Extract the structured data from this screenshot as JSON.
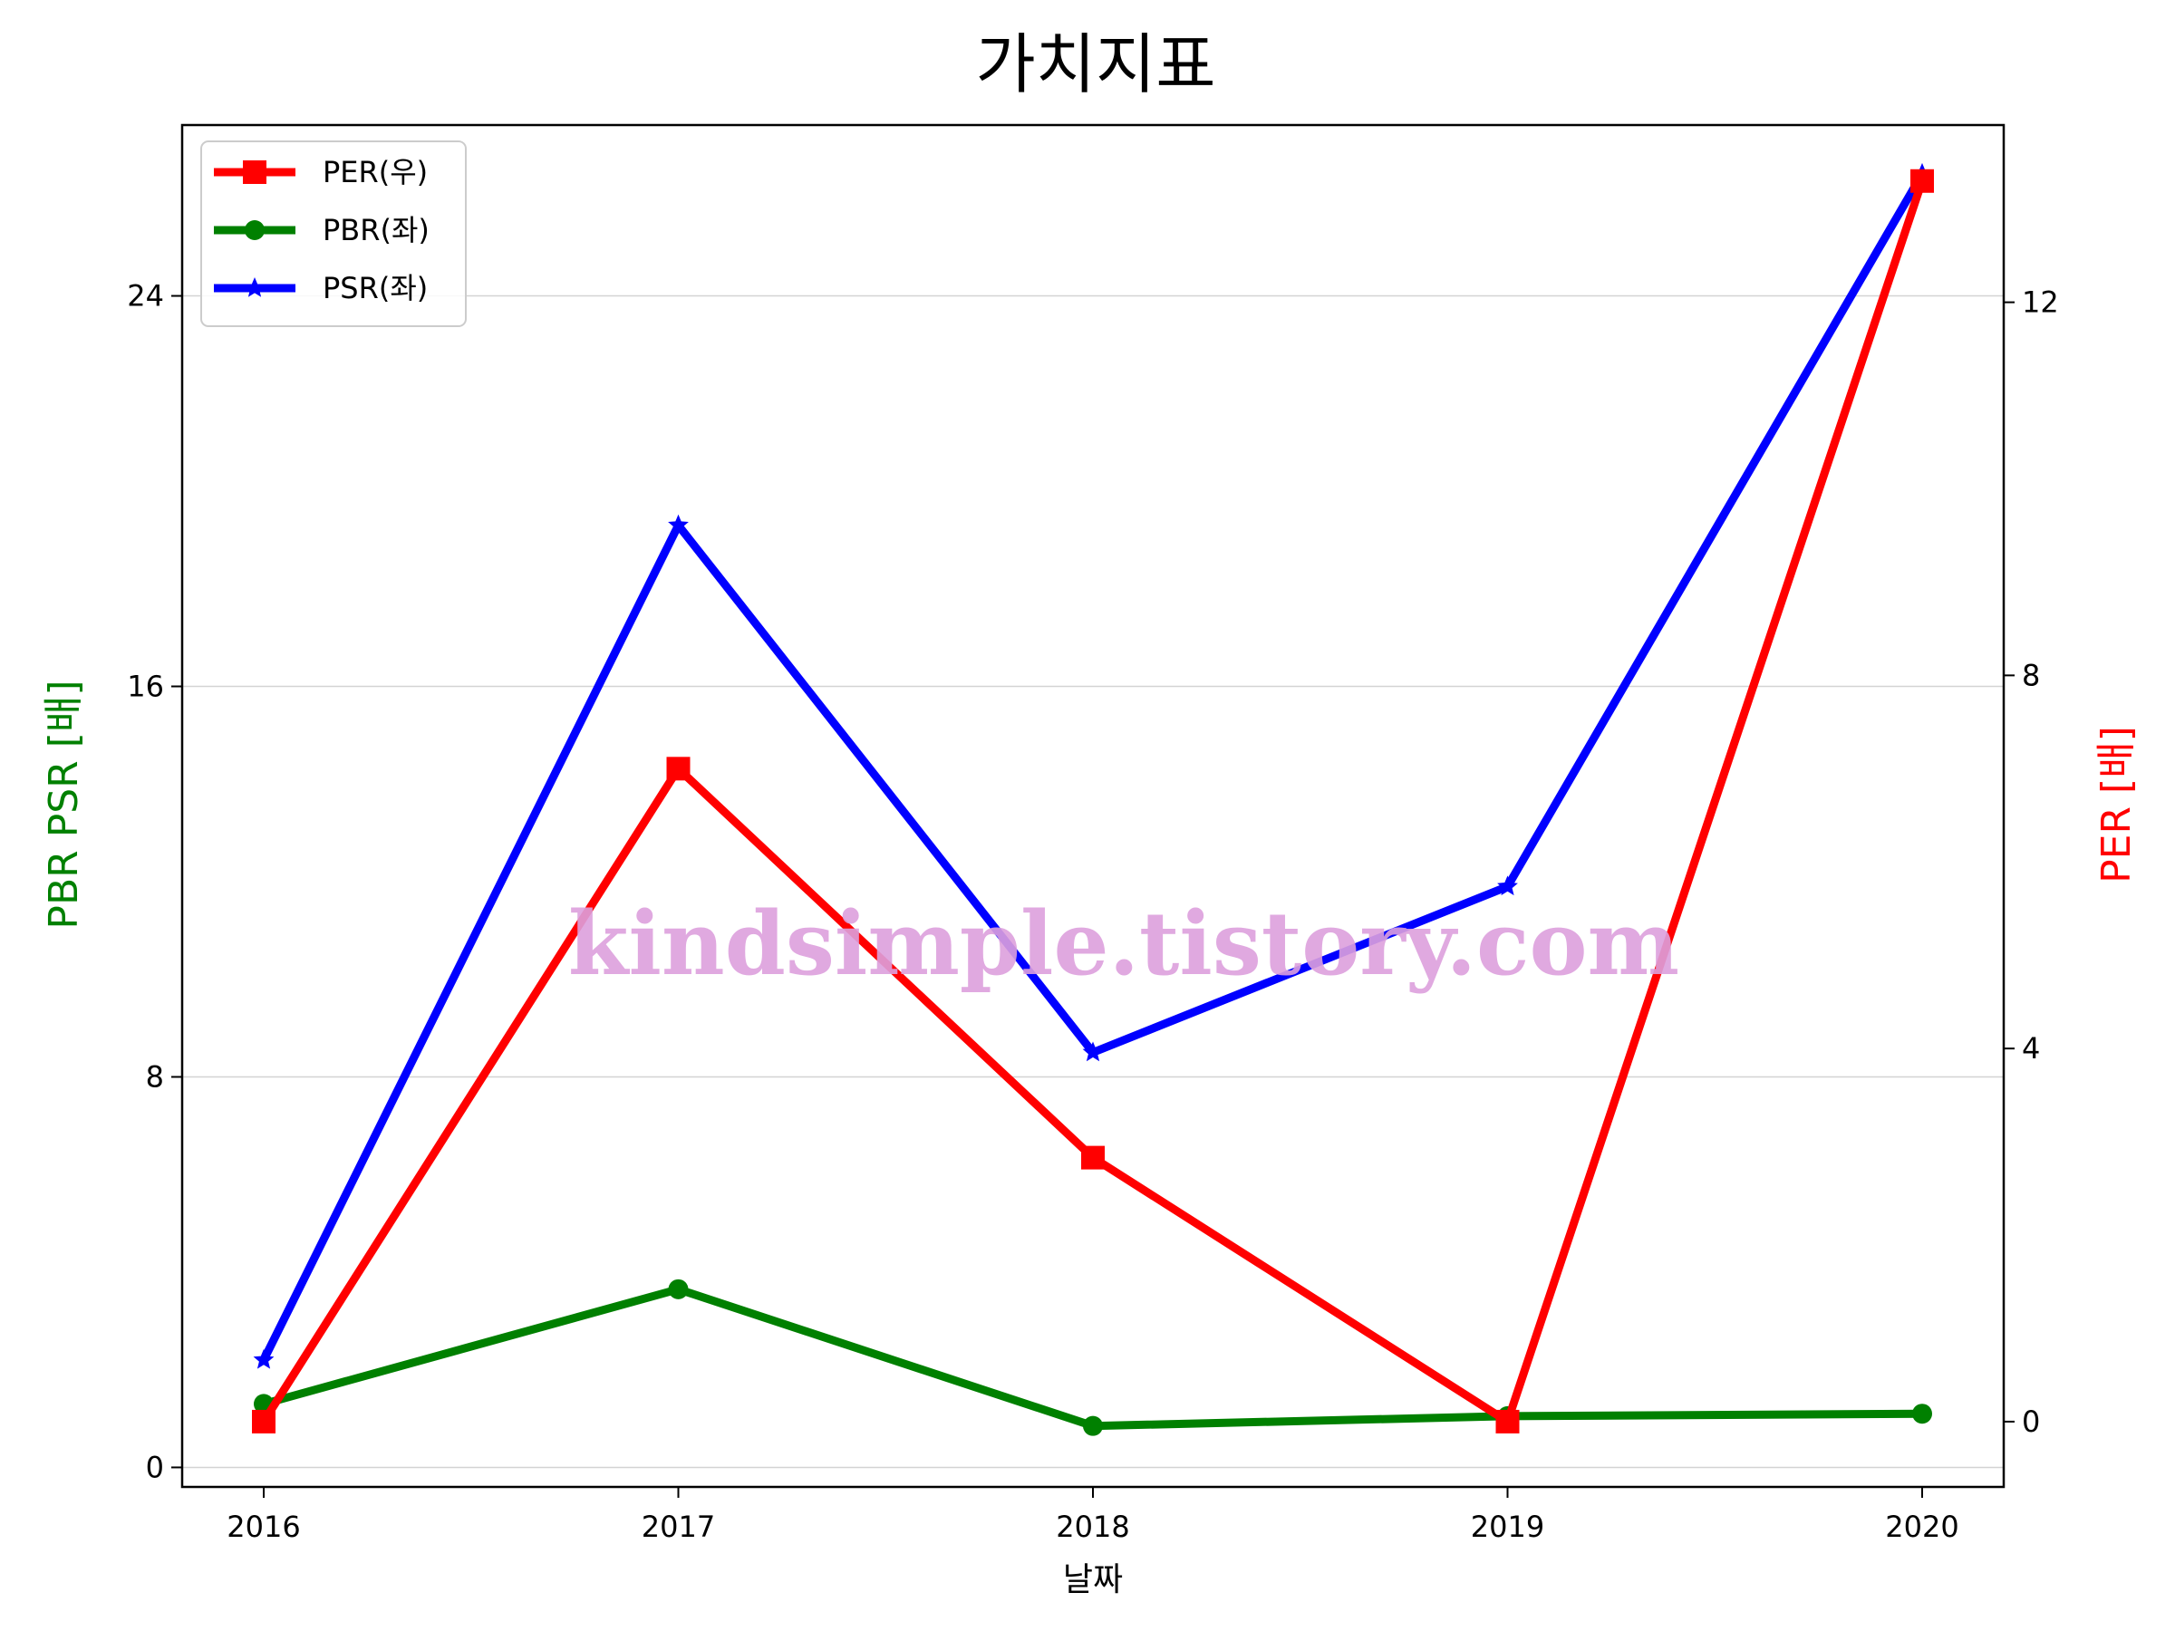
{
  "chart_data": {
    "type": "line",
    "title": "가치지표",
    "xlabel": "날짜",
    "ylabel_left": "PBR PSR [배]",
    "ylabel_right": "PER [배]",
    "left_color": "#008000",
    "right_color": "#ff0000",
    "x": [
      "2016",
      "2017",
      "2018",
      "2019",
      "2020"
    ],
    "ylim_left": [
      -0.4,
      27.5
    ],
    "ylim_right": [
      -0.7,
      13.9
    ],
    "yticks_left": [
      "0",
      "8",
      "16",
      "24"
    ],
    "yticks_right": [
      "0",
      "4",
      "8",
      "12"
    ],
    "series": [
      {
        "name": "PER(우)",
        "axis": "right",
        "color": "#ff0000",
        "marker": "square",
        "values": [
          0.0,
          7.0,
          2.83,
          0.0,
          13.3
        ]
      },
      {
        "name": "PBR(좌)",
        "axis": "left",
        "color": "#008000",
        "marker": "circle",
        "values": [
          1.3,
          3.65,
          0.85,
          1.05,
          1.1
        ]
      },
      {
        "name": "PSR(좌)",
        "axis": "left",
        "color": "#0000ff",
        "marker": "star",
        "values": [
          2.2,
          19.3,
          8.5,
          11.9,
          26.5
        ]
      }
    ],
    "grid": "horizontal",
    "legend_position": "top-left",
    "watermark": "kindsimple.tistory.com"
  }
}
